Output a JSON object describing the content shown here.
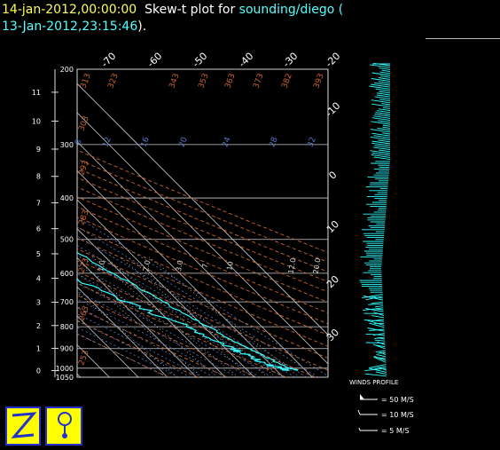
{
  "title": {
    "time": "14-jan-2012,00:00:00",
    "mid": "  Skew-t plot for ",
    "source": "sounding/diego",
    "open": " (",
    "line2": "13-Jan-2012,23:15:46",
    "close": ")."
  },
  "wind_legend": {
    "heading": "WINDS PROFILE",
    "items": [
      "= 50 M/S",
      "= 10 M/S",
      "= 5 M/S"
    ]
  },
  "chart_data": {
    "type": "line",
    "title": "",
    "xlabel": "",
    "ylabel": "",
    "pressure_levels_hpa": [
      200,
      300,
      400,
      500,
      600,
      700,
      800,
      900,
      1000,
      1050
    ],
    "height_ticks_km": [
      0,
      1,
      2,
      3,
      4,
      5,
      6,
      7,
      8,
      9,
      10,
      11
    ],
    "temperature_ticks_top": [
      -70,
      -60,
      -50,
      -40,
      -30,
      -20
    ],
    "temperature_ticks_right": [
      -10,
      0,
      10,
      20,
      30
    ],
    "dry_adiabat_labels": [
      "313",
      "323",
      "343",
      "353",
      "363",
      "373",
      "382",
      "393",
      "303",
      "293",
      "283",
      "273",
      "263",
      "253"
    ],
    "moist_adiabat_labels": [
      "8",
      "12",
      "16",
      "20",
      "24",
      "28",
      "32"
    ],
    "mixing_ratio_labels": [
      "1.0",
      "2.0",
      "3.0",
      "7",
      "10",
      "12.0",
      "20.0"
    ],
    "series": [
      {
        "name": "",
        "color": "#30ffff",
        "points_p_t": [
          [
            1012,
            27.5
          ],
          [
            1000,
            25.0
          ],
          [
            980,
            23.5
          ],
          [
            950,
            21.5
          ],
          [
            925,
            20.0
          ],
          [
            900,
            18.0
          ],
          [
            850,
            14.5
          ],
          [
            800,
            11.5
          ],
          [
            750,
            8.0
          ],
          [
            700,
            4.5
          ],
          [
            650,
            1.0
          ],
          [
            600,
            -3.0
          ],
          [
            550,
            -7.0
          ],
          [
            500,
            -12.0
          ],
          [
            450,
            -17.0
          ],
          [
            400,
            -23.0
          ],
          [
            350,
            -30.0
          ],
          [
            300,
            -38.0
          ],
          [
            250,
            -46.0
          ],
          [
            220,
            -52.0
          ],
          [
            200,
            -56.0
          ]
        ]
      },
      {
        "name": "",
        "color": "#30ffff",
        "points_p_t": [
          [
            1012,
            24.0
          ],
          [
            1000,
            22.0
          ],
          [
            980,
            19.0
          ],
          [
            950,
            17.0
          ],
          [
            925,
            15.0
          ],
          [
            900,
            12.0
          ],
          [
            850,
            8.0
          ],
          [
            800,
            4.0
          ],
          [
            750,
            -2.0
          ],
          [
            700,
            -9.0
          ],
          [
            650,
            -14.0
          ],
          [
            600,
            -18.0
          ],
          [
            550,
            -24.0
          ],
          [
            500,
            -30.0
          ],
          [
            450,
            -37.0
          ],
          [
            400,
            -45.0
          ],
          [
            350,
            -53.0
          ],
          [
            300,
            -62.0
          ],
          [
            280,
            -70.0
          ],
          [
            250,
            -72.0
          ],
          [
            220,
            -75.0
          ],
          [
            200,
            -77.0
          ]
        ]
      }
    ]
  },
  "colors": {
    "background": "#000000",
    "sounding": "#30ffff",
    "dry_adiabat": "#c86432",
    "moist_adiabat": "#5a78c8",
    "grid": "#c8c8c8",
    "title_time": "#ffff55",
    "title_source": "#55ffff"
  },
  "icons": [
    "z-logo-icon",
    "balloon-icon"
  ]
}
